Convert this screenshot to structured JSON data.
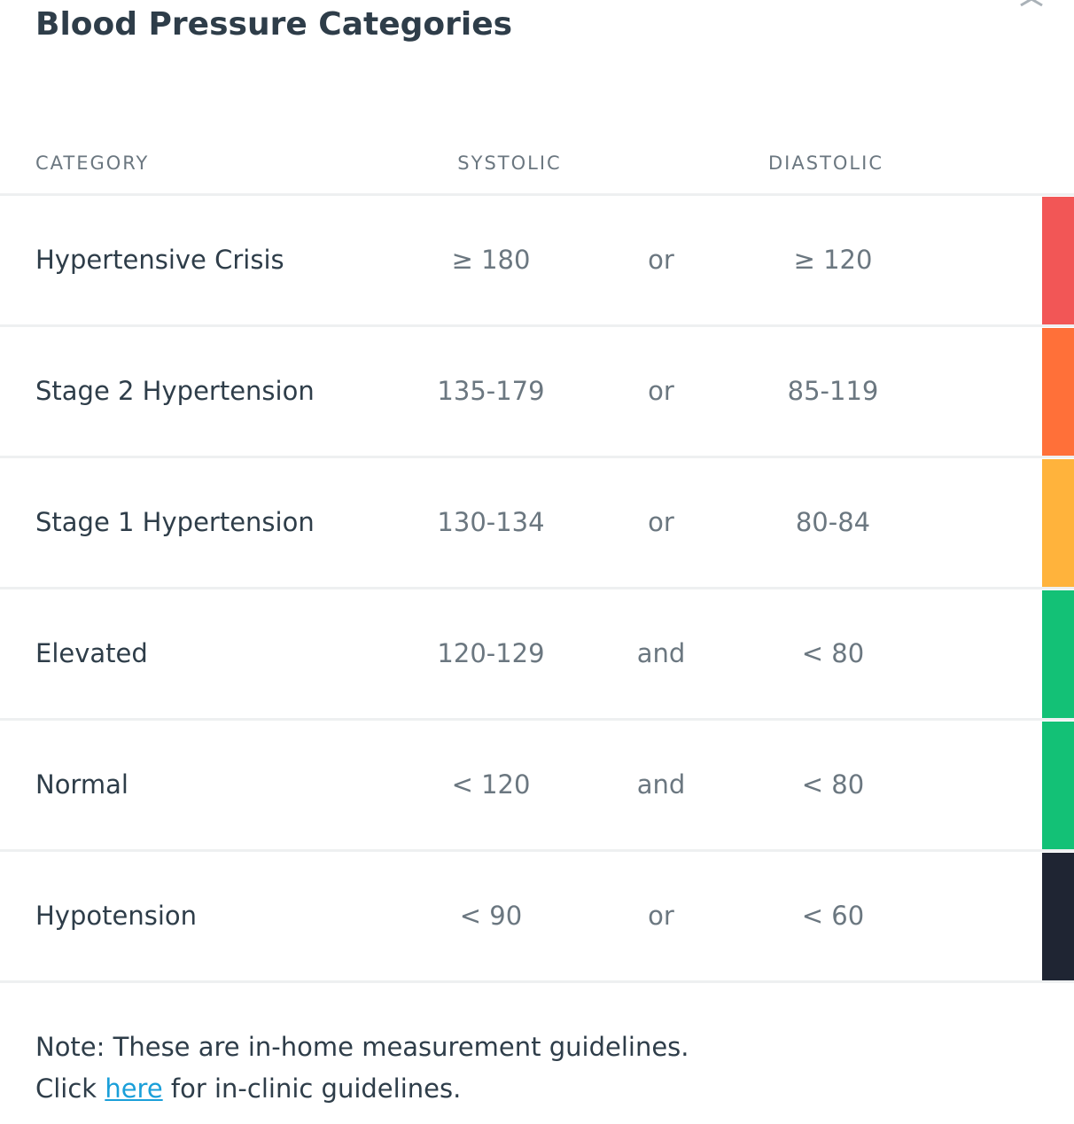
{
  "header": {
    "title": "Blood Pressure Categories"
  },
  "table": {
    "columns": [
      "CATEGORY",
      "SYSTOLIC",
      "DIASTOLIC"
    ],
    "rows": [
      {
        "category": "Hypertensive Crisis",
        "systolic": "≥ 180",
        "conjunction": "or",
        "diastolic": "≥ 120",
        "color": "#f25656"
      },
      {
        "category": "Stage 2 Hypertension",
        "systolic": "135-179",
        "conjunction": "or",
        "diastolic": "85-119",
        "color": "#ff7039"
      },
      {
        "category": "Stage 1 Hypertension",
        "systolic": "130-134",
        "conjunction": "or",
        "diastolic": "80-84",
        "color": "#ffb33c"
      },
      {
        "category": "Elevated",
        "systolic": "120-129",
        "conjunction": "and",
        "diastolic": "< 80",
        "color": "#13c176"
      },
      {
        "category": "Normal",
        "systolic": "< 120",
        "conjunction": "and",
        "diastolic": "< 80",
        "color": "#13c176"
      },
      {
        "category": "Hypotension",
        "systolic": "< 90",
        "conjunction": "or",
        "diastolic": "< 60",
        "color": "#1f2533"
      }
    ]
  },
  "note": {
    "line1": "Note: These are in-home measurement guidelines.",
    "line2_before": "Click ",
    "link": "here",
    "line2_after": " for in-clinic guidelines."
  }
}
